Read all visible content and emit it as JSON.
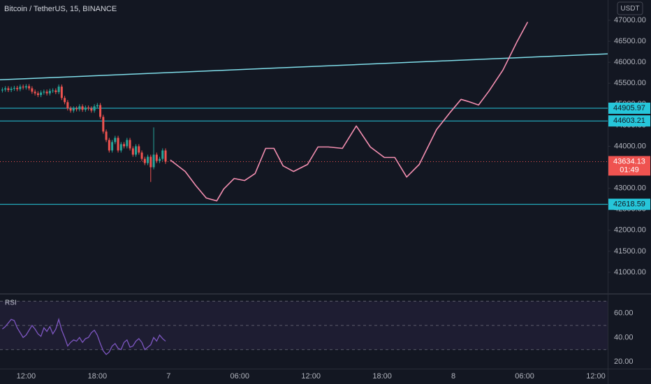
{
  "chart_data": [
    {
      "type": "candlestick",
      "title": "Bitcoin / TetherUS, 15, BINANCE",
      "currency": "USDT",
      "up_color": "#26a69a",
      "down_color": "#ef5350",
      "x": [
        -14,
        -13.75,
        -13.5,
        -13.25,
        -13,
        -12.75,
        -12.5,
        -12.25,
        -12,
        -11.75,
        -11.5,
        -11.25,
        -11,
        -10.75,
        -10.5,
        -10.25,
        -10,
        -9.75,
        -9.5,
        -9.25,
        -9,
        -8.75,
        -8.5,
        -8.25,
        -8,
        -7.75,
        -7.5,
        -7.25,
        -7,
        -6.75,
        -6.5,
        -6.25,
        -6,
        -5.75,
        -5.5,
        -5.25,
        -5,
        -4.75,
        -4.5,
        -4.25,
        -4,
        -3.75,
        -3.5,
        -3.25,
        -3,
        -2.75,
        -2.5,
        -2.25,
        -2,
        -1.75,
        -1.5,
        -1.25,
        -1,
        -0.75,
        -0.5,
        -0.25
      ],
      "open": [
        45330,
        45350,
        45380,
        45340,
        45370,
        45390,
        45360,
        45420,
        45400,
        45430,
        45380,
        45300,
        45260,
        45220,
        45280,
        45300,
        45260,
        45320,
        45330,
        45290,
        45420,
        45150,
        45050,
        44900,
        44850,
        44900,
        44880,
        44950,
        44870,
        44920,
        44900,
        44850,
        44950,
        44980,
        44700,
        44350,
        44150,
        43900,
        44100,
        44200,
        43900,
        44050,
        44000,
        44150,
        43950,
        43800,
        44000,
        43850,
        43700,
        43600,
        43750,
        43500,
        43800,
        43650,
        43700,
        43900
      ],
      "high": [
        45400,
        45430,
        45430,
        45420,
        45440,
        45440,
        45470,
        45470,
        45480,
        45480,
        45430,
        45350,
        45310,
        45330,
        45350,
        45350,
        45370,
        45380,
        45380,
        45470,
        45470,
        45200,
        45100,
        44950,
        44950,
        44950,
        45000,
        45000,
        44970,
        44970,
        44950,
        45000,
        45030,
        45030,
        44750,
        44400,
        44200,
        44150,
        44250,
        44250,
        44100,
        44100,
        44200,
        44200,
        44000,
        44050,
        44050,
        43900,
        43750,
        43800,
        43800,
        44450,
        43850,
        43750,
        43950,
        43950
      ],
      "low": [
        45280,
        45300,
        45290,
        45290,
        45320,
        45310,
        45310,
        45350,
        45350,
        45330,
        45250,
        45210,
        45170,
        45170,
        45230,
        45210,
        45210,
        45270,
        45240,
        45240,
        45100,
        45000,
        44850,
        44800,
        44800,
        44830,
        44830,
        44820,
        44820,
        44850,
        44800,
        44800,
        44900,
        44650,
        44300,
        44100,
        43850,
        43850,
        44050,
        43850,
        43850,
        43950,
        43950,
        43900,
        43750,
        43750,
        43800,
        43650,
        43550,
        43550,
        43150,
        43450,
        43600,
        43600,
        43650,
        43580
      ],
      "close": [
        45350,
        45380,
        45340,
        45370,
        45390,
        45360,
        45420,
        45400,
        45430,
        45380,
        45300,
        45260,
        45220,
        45280,
        45300,
        45260,
        45320,
        45330,
        45290,
        45420,
        45150,
        45050,
        44900,
        44850,
        44900,
        44880,
        44950,
        44870,
        44920,
        44900,
        44850,
        44950,
        44980,
        44700,
        44350,
        44150,
        43900,
        44100,
        44200,
        43900,
        44050,
        44000,
        44150,
        43950,
        43800,
        44000,
        43850,
        43700,
        43600,
        43750,
        43500,
        43800,
        43650,
        43700,
        43900,
        43634.13
      ],
      "countdown": "01:49",
      "levels": [
        44905.97,
        44603.21,
        42618.59
      ],
      "level_color": "#26c6da",
      "trendline": {
        "color": "#80deea",
        "x": [
          -14.2,
          37
        ],
        "y": [
          45583,
          46200
        ]
      },
      "projection": {
        "color": "#f48fb1",
        "x": [
          0.18,
          1.41,
          2.29,
          3.18,
          4.06,
          4.65,
          5.53,
          6.41,
          7.29,
          8.18,
          8.88,
          9.65,
          10.53,
          11.71,
          12.59,
          13.47,
          14.65,
          15.82,
          17.0,
          18.18,
          19.06,
          20.06,
          21.12,
          22.59,
          23.76,
          24.65,
          25.24,
          26.12,
          27.0,
          28.18,
          29.35,
          30.24
        ],
        "y": [
          43667,
          43400,
          43067,
          42767,
          42700,
          42983,
          43233,
          43183,
          43350,
          43950,
          43950,
          43533,
          43400,
          43567,
          43983,
          43983,
          43950,
          44483,
          43983,
          43733,
          43733,
          43267,
          43567,
          44400,
          44817,
          45117,
          45067,
          44983,
          45317,
          45817,
          46483,
          46950
        ]
      },
      "xlim": [
        -14.2,
        37
      ],
      "xticks": [
        {
          "value": -12,
          "label": "12:00"
        },
        {
          "value": -6,
          "label": "18:00"
        },
        {
          "value": 0,
          "label": "7"
        },
        {
          "value": 6,
          "label": "06:00"
        },
        {
          "value": 12,
          "label": "12:00"
        },
        {
          "value": 18,
          "label": "18:00"
        },
        {
          "value": 24,
          "label": "8"
        },
        {
          "value": 30,
          "label": "06:00"
        },
        {
          "value": 36,
          "label": "12:00"
        }
      ],
      "ylim": [
        40500,
        47483
      ],
      "yticks": [
        {
          "value": 41000,
          "label": "41000.00"
        },
        {
          "value": 41500,
          "label": "41500.00"
        },
        {
          "value": 42000,
          "label": "42000.00"
        },
        {
          "value": 42500,
          "label": "42500.00"
        },
        {
          "value": 43000,
          "label": "43000.00"
        },
        {
          "value": 43500,
          "label": "43500.00"
        },
        {
          "value": 44000,
          "label": "44000.00"
        },
        {
          "value": 44500,
          "label": "44500.00"
        },
        {
          "value": 45000,
          "label": "45000.00"
        },
        {
          "value": 45500,
          "label": "45500.00"
        },
        {
          "value": 46000,
          "label": "46000.00"
        },
        {
          "value": 46500,
          "label": "46500.00"
        },
        {
          "value": 47000,
          "label": "47000.00"
        }
      ]
    },
    {
      "type": "line",
      "title": "RSI",
      "color": "#7e57c2",
      "values": [
        47,
        49,
        52,
        55,
        54,
        48,
        44,
        40,
        42,
        46,
        50,
        47,
        43,
        41,
        48,
        45,
        49,
        43,
        47,
        55,
        46,
        40,
        33,
        36,
        38,
        37,
        40,
        36,
        39,
        40,
        44,
        46,
        42,
        35,
        29,
        26,
        28,
        33,
        35,
        31,
        30,
        36,
        38,
        32,
        33,
        37,
        39,
        36,
        30,
        32,
        34,
        40,
        37,
        42,
        39,
        37
      ],
      "bands": [
        30,
        50,
        70
      ],
      "ylim": [
        14.3,
        75.4
      ],
      "yticks": [
        {
          "value": 20,
          "label": "20.00"
        },
        {
          "value": 40,
          "label": "40.00"
        },
        {
          "value": 60,
          "label": "60.00"
        }
      ]
    }
  ]
}
